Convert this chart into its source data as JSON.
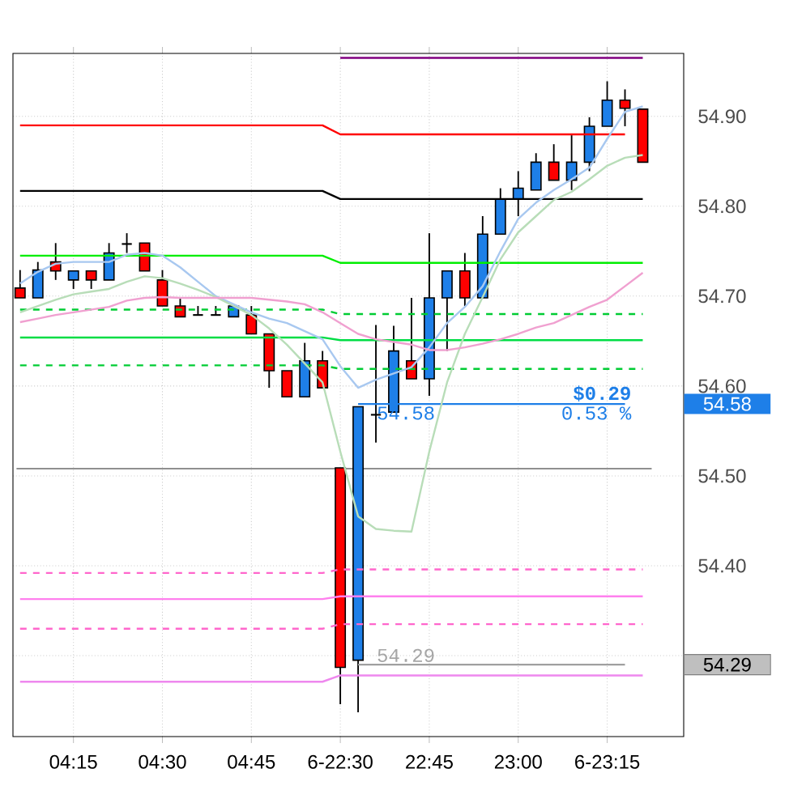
{
  "chart_data": {
    "type": "candlestick",
    "categories": [
      null,
      null,
      null,
      "04:15",
      null,
      null,
      null,
      null,
      "04:30",
      null,
      null,
      null,
      null,
      "04:45",
      null,
      null,
      null,
      null,
      "6-22:30",
      null,
      null,
      null,
      null,
      "22:45",
      null,
      null,
      null,
      null,
      "23:00",
      null,
      null,
      null,
      null,
      "6-23:15",
      null,
      null
    ],
    "ohlc": [
      [
        54.709,
        54.729,
        54.698,
        54.698
      ],
      [
        54.698,
        54.738,
        54.698,
        54.729
      ],
      [
        54.738,
        54.759,
        54.718,
        54.728
      ],
      [
        54.718,
        54.728,
        54.708,
        54.728
      ],
      [
        54.728,
        54.728,
        54.708,
        54.718
      ],
      [
        54.718,
        54.759,
        54.718,
        54.748
      ],
      [
        54.758,
        54.77,
        54.748,
        54.758
      ],
      [
        54.759,
        54.759,
        54.728,
        54.728
      ],
      [
        54.718,
        54.729,
        54.689,
        54.689
      ],
      [
        54.689,
        54.698,
        54.677,
        54.677
      ],
      [
        54.679,
        54.689,
        54.679,
        54.679
      ],
      [
        54.679,
        54.689,
        54.679,
        54.679
      ],
      [
        54.677,
        54.689,
        54.677,
        54.689
      ],
      [
        54.679,
        54.689,
        54.658,
        54.658
      ],
      [
        54.658,
        54.658,
        54.598,
        54.617
      ],
      [
        54.617,
        54.617,
        54.588,
        54.588
      ],
      [
        54.588,
        54.648,
        54.588,
        54.628
      ],
      [
        54.628,
        54.639,
        54.598,
        54.598
      ],
      [
        54.509,
        54.509,
        54.246,
        54.287
      ],
      [
        54.295,
        54.577,
        54.237,
        54.577
      ],
      [
        54.568,
        54.668,
        54.537,
        54.568
      ],
      [
        54.571,
        54.667,
        54.571,
        54.639
      ],
      [
        54.628,
        54.698,
        54.608,
        54.608
      ],
      [
        54.608,
        54.77,
        54.589,
        54.698
      ],
      [
        54.698,
        54.728,
        54.639,
        54.728
      ],
      [
        54.728,
        54.748,
        54.689,
        54.698
      ],
      [
        54.698,
        54.789,
        54.698,
        54.769
      ],
      [
        54.769,
        54.82,
        54.769,
        54.808
      ],
      [
        54.808,
        54.839,
        54.789,
        54.82
      ],
      [
        54.818,
        54.859,
        54.818,
        54.849
      ],
      [
        54.849,
        54.869,
        54.829,
        54.829
      ],
      [
        54.829,
        54.879,
        54.818,
        54.849
      ],
      [
        54.849,
        54.899,
        54.839,
        54.889
      ],
      [
        54.889,
        54.939,
        54.889,
        54.918
      ],
      [
        54.918,
        54.93,
        54.889,
        54.909
      ],
      [
        54.908,
        54.908,
        54.849,
        54.849
      ]
    ],
    "colors": [
      "#ff0000",
      "#1e7fe8",
      "#ff0000",
      "#1e7fe8",
      "#ff0000",
      "#1e7fe8",
      "#000000",
      "#ff0000",
      "#ff0000",
      "#ff0000",
      "#000000",
      "#000000",
      "#1e7fe8",
      "#ff0000",
      "#ff0000",
      "#ff0000",
      "#1e7fe8",
      "#ff0000",
      "#ff0000",
      "#1e7fe8",
      "#000000",
      "#1e7fe8",
      "#ff0000",
      "#1e7fe8",
      "#1e7fe8",
      "#ff0000",
      "#1e7fe8",
      "#1e7fe8",
      "#1e7fe8",
      "#1e7fe8",
      "#ff0000",
      "#1e7fe8",
      "#1e7fe8",
      "#1e7fe8",
      "#ff0000",
      "#ff0000"
    ],
    "series": [
      {
        "type": "line",
        "color": "#800080",
        "line_style": "solid",
        "values": [
          null,
          null,
          null,
          null,
          null,
          null,
          null,
          null,
          null,
          null,
          null,
          null,
          null,
          null,
          null,
          null,
          null,
          null,
          54.965,
          54.965,
          54.965,
          54.965,
          54.965,
          54.965,
          54.965,
          54.965,
          54.965,
          54.965,
          54.965,
          54.965,
          54.965,
          54.965,
          54.965,
          54.965,
          54.965,
          54.965
        ]
      },
      {
        "type": "line",
        "color": "#ff0000",
        "line_style": "solid",
        "values": [
          54.89,
          54.89,
          54.89,
          54.89,
          54.89,
          54.89,
          54.89,
          54.89,
          54.89,
          54.89,
          54.89,
          54.89,
          54.89,
          54.89,
          54.89,
          54.89,
          54.89,
          54.89,
          54.88,
          54.88,
          54.88,
          54.88,
          54.88,
          54.88,
          54.88,
          54.88,
          54.88,
          54.88,
          54.88,
          54.88,
          54.88,
          54.88,
          54.88,
          54.88,
          54.88,
          null
        ]
      },
      {
        "type": "line",
        "color": "#000000",
        "line_style": "solid",
        "values": [
          54.817,
          54.817,
          54.817,
          54.817,
          54.817,
          54.817,
          54.817,
          54.817,
          54.817,
          54.817,
          54.817,
          54.817,
          54.817,
          54.817,
          54.817,
          54.817,
          54.817,
          54.817,
          54.808,
          54.808,
          54.808,
          54.808,
          54.808,
          54.808,
          54.808,
          54.808,
          54.808,
          54.808,
          54.808,
          54.808,
          54.808,
          54.808,
          54.808,
          54.808,
          54.808,
          54.808
        ]
      },
      {
        "type": "line",
        "color": "#00ee00",
        "line_style": "solid",
        "values": [
          54.745,
          54.745,
          54.745,
          54.745,
          54.745,
          54.745,
          54.745,
          54.745,
          54.745,
          54.745,
          54.745,
          54.745,
          54.745,
          54.745,
          54.745,
          54.745,
          54.745,
          54.745,
          54.737,
          54.737,
          54.737,
          54.737,
          54.737,
          54.737,
          54.737,
          54.737,
          54.737,
          54.737,
          54.737,
          54.737,
          54.737,
          54.737,
          54.737,
          54.737,
          54.737,
          54.737
        ]
      },
      {
        "type": "line",
        "color": "#00cc33",
        "line_style": "dashed",
        "values": [
          54.685,
          54.685,
          54.685,
          54.685,
          54.685,
          54.685,
          54.685,
          54.685,
          54.685,
          54.685,
          54.685,
          54.685,
          54.685,
          54.685,
          54.685,
          54.685,
          54.685,
          54.685,
          54.68,
          54.68,
          54.68,
          54.68,
          54.68,
          54.68,
          54.68,
          54.68,
          54.68,
          54.68,
          54.68,
          54.68,
          54.68,
          54.68,
          54.68,
          54.68,
          54.68,
          54.68
        ]
      },
      {
        "type": "line",
        "color": "#00dd44",
        "line_style": "solid",
        "values": [
          54.654,
          54.654,
          54.654,
          54.654,
          54.654,
          54.654,
          54.654,
          54.654,
          54.654,
          54.654,
          54.654,
          54.654,
          54.654,
          54.654,
          54.654,
          54.654,
          54.654,
          54.654,
          54.651,
          54.651,
          54.651,
          54.651,
          54.651,
          54.651,
          54.651,
          54.651,
          54.651,
          54.651,
          54.651,
          54.651,
          54.651,
          54.651,
          54.651,
          54.651,
          54.651,
          54.651
        ]
      },
      {
        "type": "line",
        "color": "#00cc33",
        "line_style": "dashed",
        "values": [
          54.623,
          54.623,
          54.623,
          54.623,
          54.623,
          54.623,
          54.623,
          54.623,
          54.623,
          54.623,
          54.623,
          54.623,
          54.623,
          54.623,
          54.623,
          54.623,
          54.623,
          54.623,
          54.619,
          54.619,
          54.619,
          54.619,
          54.619,
          54.619,
          54.619,
          54.619,
          54.619,
          54.619,
          54.619,
          54.619,
          54.619,
          54.619,
          54.619,
          54.619,
          54.619,
          54.619
        ]
      },
      {
        "type": "line",
        "color": "#ff66cc",
        "line_style": "dashed",
        "values": [
          54.392,
          54.392,
          54.392,
          54.392,
          54.392,
          54.392,
          54.392,
          54.392,
          54.392,
          54.392,
          54.392,
          54.392,
          54.392,
          54.392,
          54.392,
          54.392,
          54.392,
          54.392,
          54.396,
          54.396,
          54.396,
          54.396,
          54.396,
          54.396,
          54.396,
          54.396,
          54.396,
          54.396,
          54.396,
          54.396,
          54.396,
          54.396,
          54.396,
          54.396,
          54.396,
          54.396
        ]
      },
      {
        "type": "line",
        "color": "#ff80ee",
        "line_style": "solid",
        "values": [
          54.363,
          54.363,
          54.363,
          54.363,
          54.363,
          54.363,
          54.363,
          54.363,
          54.363,
          54.363,
          54.363,
          54.363,
          54.363,
          54.363,
          54.363,
          54.363,
          54.363,
          54.363,
          54.366,
          54.366,
          54.366,
          54.366,
          54.366,
          54.366,
          54.366,
          54.366,
          54.366,
          54.366,
          54.366,
          54.366,
          54.366,
          54.366,
          54.366,
          54.366,
          54.366,
          54.366
        ]
      },
      {
        "type": "line",
        "color": "#ff66cc",
        "line_style": "dashed",
        "values": [
          54.33,
          54.33,
          54.33,
          54.33,
          54.33,
          54.33,
          54.33,
          54.33,
          54.33,
          54.33,
          54.33,
          54.33,
          54.33,
          54.33,
          54.33,
          54.33,
          54.33,
          54.33,
          54.335,
          54.335,
          54.335,
          54.335,
          54.335,
          54.335,
          54.335,
          54.335,
          54.335,
          54.335,
          54.335,
          54.335,
          54.335,
          54.335,
          54.335,
          54.335,
          54.335,
          54.335
        ]
      },
      {
        "type": "line",
        "color": "#ee88ee",
        "line_style": "solid",
        "values": [
          54.271,
          54.271,
          54.271,
          54.271,
          54.271,
          54.271,
          54.271,
          54.271,
          54.271,
          54.271,
          54.271,
          54.271,
          54.271,
          54.271,
          54.271,
          54.271,
          54.271,
          54.271,
          54.278,
          54.278,
          54.278,
          54.278,
          54.278,
          54.278,
          54.278,
          54.278,
          54.278,
          54.278,
          54.278,
          54.278,
          54.278,
          54.278,
          54.278,
          54.278,
          54.278,
          54.278
        ]
      },
      {
        "type": "line",
        "color": "#1e7fe8",
        "line_style": "solid",
        "values": [
          null,
          null,
          null,
          null,
          null,
          null,
          null,
          null,
          null,
          null,
          null,
          null,
          null,
          null,
          null,
          null,
          null,
          null,
          null,
          54.58,
          54.58,
          54.58,
          54.58,
          54.58,
          54.58,
          54.58,
          54.58,
          54.58,
          54.58,
          54.58,
          54.58,
          54.58,
          54.58,
          54.58,
          54.58,
          null
        ]
      },
      {
        "type": "line",
        "color": "#a0a0a0",
        "line_style": "solid",
        "values": [
          null,
          null,
          null,
          null,
          null,
          null,
          null,
          null,
          null,
          null,
          null,
          null,
          null,
          null,
          null,
          null,
          null,
          null,
          null,
          54.29,
          54.29,
          54.29,
          54.29,
          54.29,
          54.29,
          54.29,
          54.29,
          54.29,
          54.29,
          54.29,
          54.29,
          54.29,
          54.29,
          54.29,
          54.29,
          null
        ]
      },
      {
        "type": "line",
        "color": "#a8c8f0",
        "line_style": "solid",
        "values": [
          54.714,
          54.727,
          54.736,
          54.738,
          54.738,
          54.738,
          54.746,
          54.748,
          54.745,
          54.732,
          54.716,
          54.7,
          54.691,
          54.682,
          54.675,
          54.67,
          54.661,
          54.652,
          54.622,
          54.598,
          54.607,
          54.614,
          54.621,
          54.643,
          54.67,
          54.688,
          54.711,
          54.75,
          54.786,
          54.804,
          54.818,
          54.83,
          54.843,
          54.875,
          54.905,
          54.911
        ]
      },
      {
        "type": "line",
        "color": "#b8ddb8",
        "line_style": "solid",
        "values": [
          54.682,
          54.689,
          54.696,
          54.702,
          54.705,
          54.708,
          54.716,
          54.722,
          54.72,
          54.714,
          54.707,
          54.699,
          54.689,
          54.679,
          54.664,
          54.646,
          54.625,
          54.604,
          54.527,
          54.455,
          54.441,
          54.439,
          54.438,
          54.527,
          54.604,
          54.658,
          54.699,
          54.741,
          54.771,
          54.789,
          54.807,
          54.816,
          54.83,
          54.845,
          54.854,
          54.857
        ]
      },
      {
        "type": "line",
        "color": "#f0a0d0",
        "line_style": "solid",
        "values": [
          54.671,
          54.675,
          54.679,
          54.682,
          54.685,
          54.688,
          54.695,
          54.698,
          54.699,
          54.698,
          54.698,
          54.698,
          54.698,
          54.698,
          54.696,
          54.694,
          54.691,
          54.682,
          54.67,
          54.658,
          54.652,
          54.649,
          54.646,
          54.64,
          54.64,
          54.643,
          54.647,
          54.652,
          54.658,
          54.665,
          54.67,
          54.679,
          54.688,
          54.696,
          54.711,
          54.726
        ]
      }
    ],
    "ref_lines": [
      {
        "axis": "y",
        "value": 54.508,
        "color": "#909090"
      }
    ],
    "annotations": [
      "$0.29",
      "0.53 %",
      {
        "text": "54.58",
        "y": 54.58
      },
      {
        "text": "54.29",
        "y": 54.29
      },
      "54.58",
      "54.29"
    ],
    "ylim": [
      54.21,
      54.97
    ],
    "yticks": [
      {
        "value": 54.3,
        "label": null
      },
      {
        "value": 54.4,
        "label": "54.40"
      },
      {
        "value": 54.5,
        "label": "54.50"
      },
      {
        "value": 54.6,
        "label": "54.60"
      },
      {
        "value": 54.7,
        "label": "54.70"
      },
      {
        "value": 54.8,
        "label": "54.80"
      },
      {
        "value": 54.9,
        "label": "54.90"
      }
    ],
    "grid": true
  }
}
